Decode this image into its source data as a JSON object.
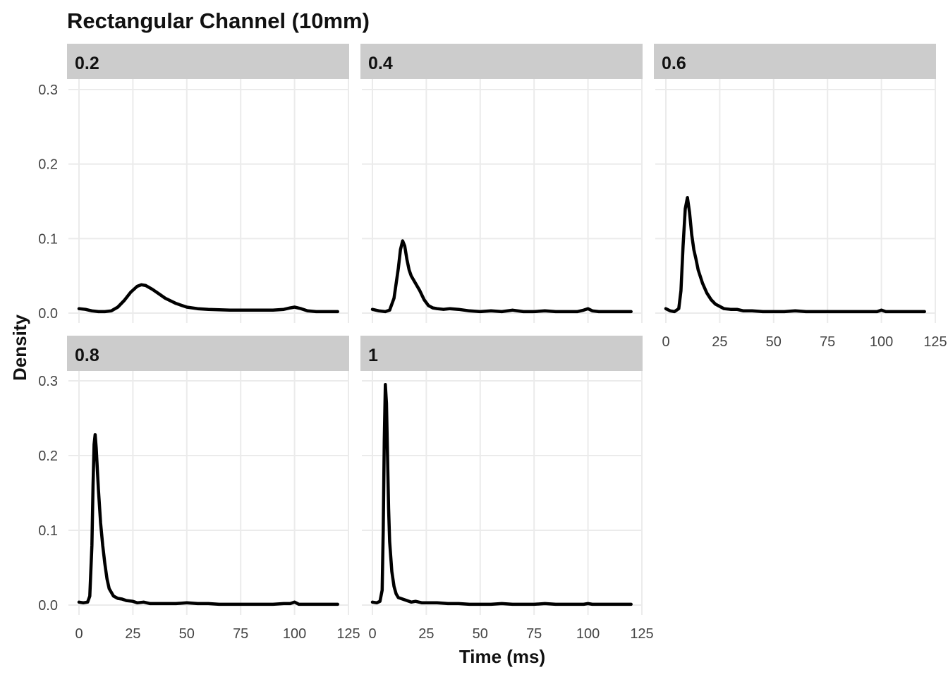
{
  "chart_data": {
    "type": "line",
    "title": "Rectangular Channel (10mm)",
    "xlabel": "Time (ms)",
    "ylabel": "Density",
    "xlim": [
      0,
      125
    ],
    "ylim": [
      0,
      0.3
    ],
    "x_ticks": [
      "0",
      "25",
      "50",
      "75",
      "100",
      "125"
    ],
    "y_ticks": [
      "0.0",
      "0.1",
      "0.2",
      "0.3"
    ],
    "grid": true,
    "line_color": "#000000",
    "strip_color": "#cccccc",
    "panels": [
      {
        "label": "0.2",
        "x": [
          0,
          3,
          6,
          9,
          12,
          15,
          18,
          21,
          24,
          27,
          29,
          31,
          34,
          37,
          40,
          45,
          50,
          55,
          60,
          70,
          80,
          90,
          95,
          98,
          100,
          103,
          106,
          110,
          115,
          120
        ],
        "y": [
          0.006,
          0.005,
          0.003,
          0.002,
          0.002,
          0.003,
          0.008,
          0.017,
          0.028,
          0.036,
          0.038,
          0.037,
          0.032,
          0.026,
          0.02,
          0.013,
          0.008,
          0.006,
          0.005,
          0.004,
          0.004,
          0.004,
          0.005,
          0.007,
          0.008,
          0.006,
          0.003,
          0.002,
          0.002,
          0.002
        ]
      },
      {
        "label": "0.4",
        "x": [
          0,
          3,
          6,
          8,
          10,
          12,
          13,
          14,
          15,
          16,
          17,
          18,
          20,
          22,
          24,
          26,
          28,
          30,
          33,
          36,
          40,
          45,
          50,
          55,
          60,
          65,
          70,
          75,
          80,
          85,
          90,
          95,
          98,
          100,
          102,
          105,
          110,
          115,
          120
        ],
        "y": [
          0.005,
          0.003,
          0.002,
          0.004,
          0.02,
          0.06,
          0.085,
          0.097,
          0.09,
          0.072,
          0.058,
          0.05,
          0.04,
          0.03,
          0.018,
          0.01,
          0.007,
          0.006,
          0.005,
          0.006,
          0.005,
          0.003,
          0.002,
          0.003,
          0.002,
          0.004,
          0.002,
          0.002,
          0.003,
          0.002,
          0.002,
          0.002,
          0.004,
          0.006,
          0.003,
          0.002,
          0.002,
          0.002,
          0.002
        ]
      },
      {
        "label": "0.6",
        "x": [
          0,
          2,
          4,
          6,
          7,
          8,
          9,
          10,
          11,
          12,
          13,
          14,
          15,
          17,
          19,
          21,
          23,
          25,
          27,
          30,
          33,
          36,
          40,
          45,
          50,
          55,
          60,
          65,
          70,
          75,
          80,
          85,
          90,
          95,
          98,
          100,
          102,
          105,
          110,
          115,
          120
        ],
        "y": [
          0.006,
          0.003,
          0.002,
          0.006,
          0.03,
          0.09,
          0.14,
          0.155,
          0.135,
          0.105,
          0.085,
          0.072,
          0.058,
          0.04,
          0.027,
          0.018,
          0.012,
          0.009,
          0.006,
          0.005,
          0.005,
          0.003,
          0.003,
          0.002,
          0.002,
          0.002,
          0.003,
          0.002,
          0.002,
          0.002,
          0.002,
          0.002,
          0.002,
          0.002,
          0.002,
          0.004,
          0.002,
          0.002,
          0.002,
          0.002,
          0.002
        ]
      },
      {
        "label": "0.8",
        "x": [
          0,
          2,
          4,
          5,
          6,
          6.5,
          7,
          7.5,
          8,
          9,
          10,
          11,
          12,
          13,
          14,
          16,
          18,
          20,
          22,
          25,
          27,
          30,
          33,
          36,
          40,
          45,
          50,
          55,
          60,
          65,
          70,
          75,
          80,
          85,
          90,
          95,
          98,
          100,
          102,
          105,
          110,
          115,
          120
        ],
        "y": [
          0.004,
          0.003,
          0.004,
          0.012,
          0.08,
          0.16,
          0.215,
          0.228,
          0.21,
          0.155,
          0.11,
          0.08,
          0.055,
          0.035,
          0.022,
          0.012,
          0.009,
          0.008,
          0.006,
          0.005,
          0.003,
          0.004,
          0.002,
          0.002,
          0.002,
          0.002,
          0.003,
          0.002,
          0.002,
          0.001,
          0.001,
          0.001,
          0.001,
          0.001,
          0.001,
          0.002,
          0.002,
          0.004,
          0.001,
          0.001,
          0.001,
          0.001,
          0.001
        ]
      },
      {
        "label": "1",
        "x": [
          0,
          2,
          3.5,
          4.5,
          5,
          5.5,
          6,
          6.5,
          7,
          7.5,
          8,
          9,
          10,
          11,
          12,
          14,
          16,
          18,
          20,
          23,
          26,
          30,
          35,
          40,
          45,
          50,
          55,
          60,
          65,
          70,
          75,
          80,
          85,
          90,
          95,
          98,
          100,
          102,
          105,
          110,
          115,
          120
        ],
        "y": [
          0.004,
          0.003,
          0.005,
          0.02,
          0.1,
          0.22,
          0.295,
          0.27,
          0.2,
          0.13,
          0.085,
          0.045,
          0.025,
          0.015,
          0.01,
          0.008,
          0.006,
          0.004,
          0.005,
          0.003,
          0.003,
          0.003,
          0.002,
          0.002,
          0.001,
          0.001,
          0.001,
          0.002,
          0.001,
          0.001,
          0.001,
          0.002,
          0.001,
          0.001,
          0.001,
          0.001,
          0.002,
          0.001,
          0.001,
          0.001,
          0.001,
          0.001
        ]
      }
    ]
  }
}
